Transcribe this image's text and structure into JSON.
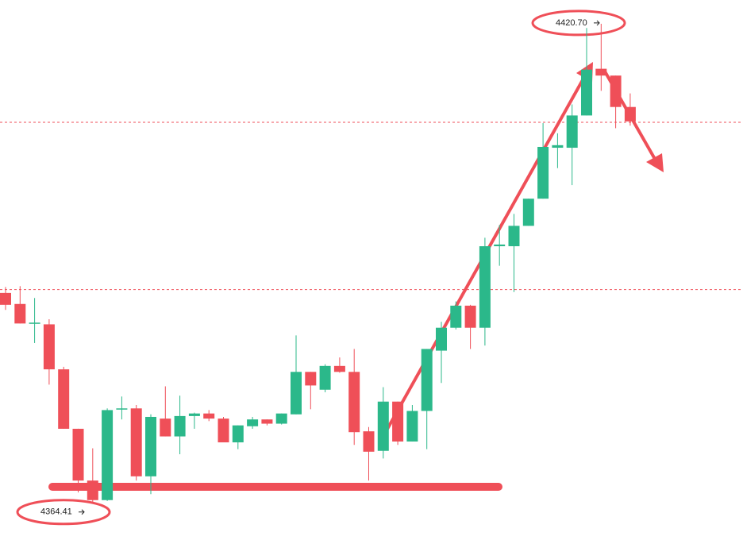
{
  "chart_data": {
    "type": "candlestick",
    "up_color": "#2bb88a",
    "down_color": "#ef4f58",
    "ylim": [
      4359.9,
      4423.5
    ],
    "hlines": [
      4409.1,
      4389.4
    ],
    "open": [
      4389.0,
      4387.7,
      4385.4,
      4385.3,
      4380.0,
      4373.0,
      4366.9,
      4364.6,
      4375.3,
      4375.4,
      4367.4,
      4374.2,
      4372.1,
      4374.5,
      4374.8,
      4374.2,
      4371.4,
      4373.3,
      4374.1,
      4373.6,
      4374.7,
      4379.7,
      4377.6,
      4380.4,
      4379.7,
      4372.7,
      4370.4,
      4376.2,
      4371.5,
      4375.1,
      4382.2,
      4384.9,
      4387.5,
      4384.9,
      4394.5,
      4394.5,
      4396.9,
      4400.1,
      4406.1,
      4406.1,
      4409.9,
      4415.4,
      4414.6,
      4410.9
    ],
    "high": [
      4389.7,
      4389.8,
      4388.4,
      4385.9,
      4380.3,
      4373.0,
      4370.7,
      4375.4,
      4376.8,
      4375.8,
      4374.7,
      4378.0,
      4376.9,
      4374.9,
      4375.2,
      4374.4,
      4373.4,
      4374.4,
      4374.1,
      4374.8,
      4384.0,
      4379.7,
      4380.6,
      4381.4,
      4382.4,
      4373.2,
      4377.9,
      4376.2,
      4375.8,
      4382.4,
      4385.6,
      4388.0,
      4387.6,
      4395.5,
      4397.0,
      4398.3,
      4400.1,
      4409.0,
      4407.8,
      4411.2,
      4420.2,
      4420.7,
      4414.6,
      4412.5
    ],
    "low": [
      4387.0,
      4385.4,
      4383.1,
      4378.2,
      4373.0,
      4365.5,
      4364.41,
      4364.5,
      4374.1,
      4366.9,
      4365.3,
      4372.1,
      4370.0,
      4373.0,
      4373.9,
      4371.4,
      4370.6,
      4373.0,
      4373.4,
      4373.5,
      4374.7,
      4375.3,
      4377.3,
      4379.6,
      4371.1,
      4366.9,
      4369.5,
      4371.1,
      4371.5,
      4370.6,
      4378.4,
      4384.7,
      4382.4,
      4382.8,
      4392.2,
      4389.1,
      4396.9,
      4400.1,
      4403.7,
      4401.7,
      4409.9,
      4412.8,
      4408.4,
      4408.7
    ],
    "close": [
      4387.6,
      4385.4,
      4385.5,
      4380.0,
      4373.0,
      4366.9,
      4364.6,
      4375.2,
      4375.4,
      4367.4,
      4374.4,
      4372.1,
      4374.5,
      4374.8,
      4374.2,
      4371.4,
      4373.4,
      4374.1,
      4373.6,
      4374.8,
      4379.7,
      4378.1,
      4380.4,
      4379.7,
      4372.6,
      4370.3,
      4376.2,
      4371.5,
      4375.1,
      4382.4,
      4384.9,
      4387.5,
      4384.9,
      4394.5,
      4394.7,
      4396.9,
      4400.1,
      4406.2,
      4406.4,
      4409.9,
      4415.3,
      4414.6,
      4410.9,
      4409.2
    ],
    "annotations": [
      {
        "value": 4420.7,
        "label": "4420.70"
      },
      {
        "value": 4364.41,
        "label": "4364.41"
      }
    ]
  }
}
